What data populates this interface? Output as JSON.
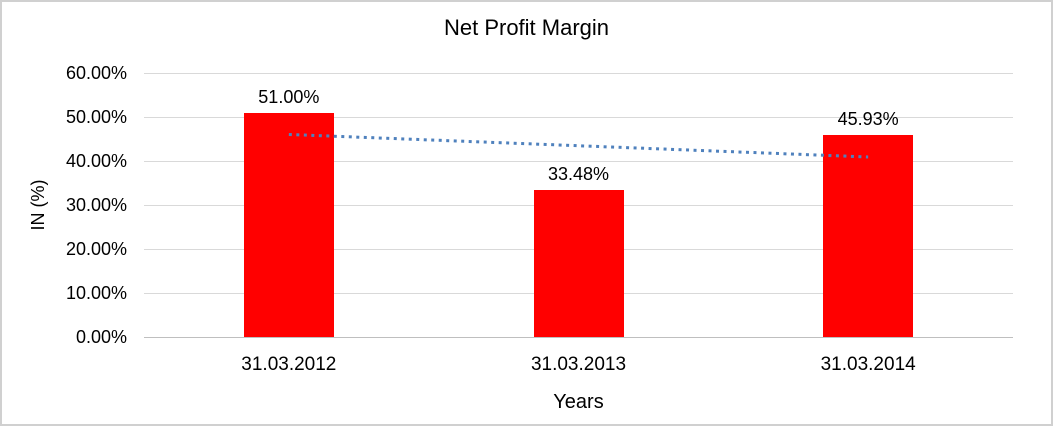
{
  "chart_data": {
    "type": "bar",
    "title": "Net Profit Margin",
    "xlabel": "Years",
    "ylabel": "IN (%)",
    "categories": [
      "31.03.2012",
      "31.03.2013",
      "31.03.2014"
    ],
    "values": [
      51.0,
      33.48,
      45.93
    ],
    "value_labels": [
      "51.00%",
      "33.48%",
      "45.93%"
    ],
    "ylim": [
      0,
      60
    ],
    "ytick_step": 10,
    "ytick_labels": [
      "0.00%",
      "10.00%",
      "20.00%",
      "30.00%",
      "40.00%",
      "50.00%",
      "60.00%"
    ],
    "grid": "horizontal",
    "legend": "none",
    "bar_color": "#ff0000",
    "gridline_color": "#d9d9d9",
    "axis_line_color": "#bfbfbf",
    "frame_border_color": "#d0d0d0",
    "trendline": {
      "type": "linear",
      "style": "dotted",
      "color": "#4f81bd",
      "start_value": 46.03,
      "end_value": 40.91
    }
  }
}
